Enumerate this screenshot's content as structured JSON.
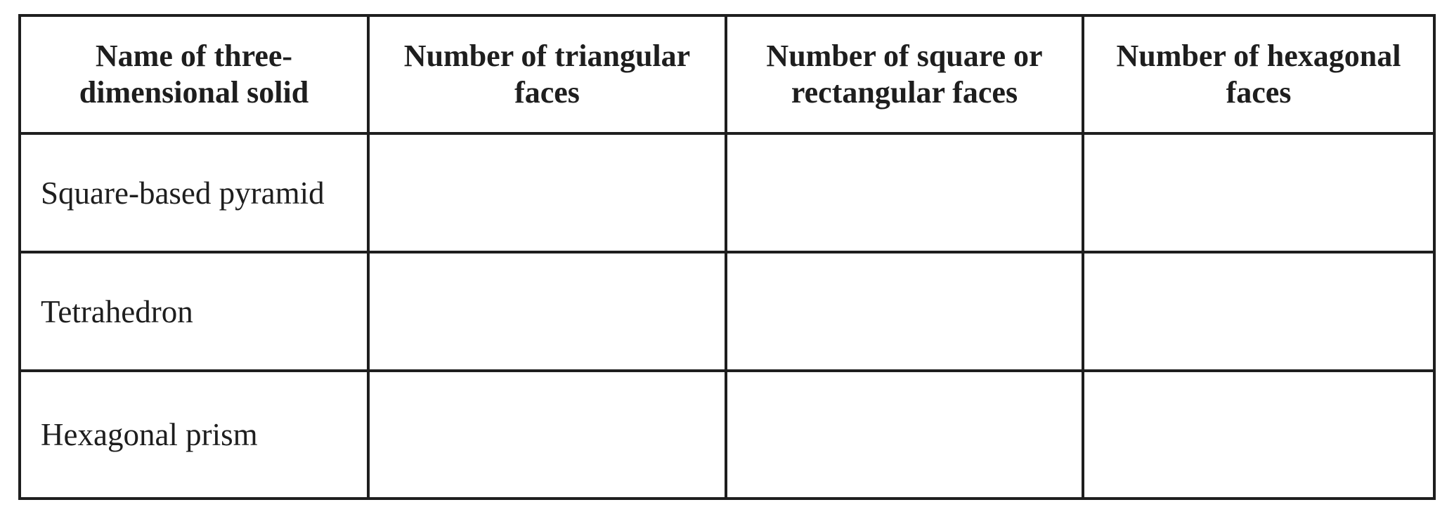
{
  "table": {
    "headers": [
      "Name of three-dimensional solid",
      "Number of triangular faces",
      "Number of square or rectangular faces",
      "Number of hexagonal faces"
    ],
    "rows": [
      [
        "Square-based pyramid",
        "",
        "",
        ""
      ],
      [
        "Tetrahedron",
        "",
        "",
        ""
      ],
      [
        "Hexagonal prism",
        "",
        "",
        ""
      ]
    ]
  }
}
